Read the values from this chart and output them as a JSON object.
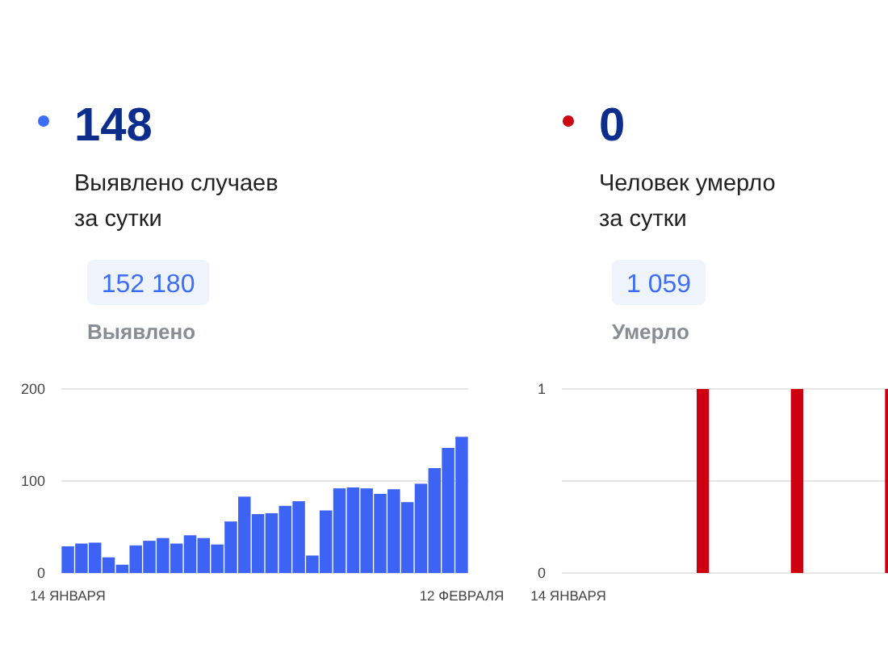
{
  "chart_data": [
    {
      "type": "other",
      "title": "148",
      "subtitle": "Выявлено случаев\nза сутки",
      "annotations": [
        "152 180",
        "Выявлено"
      ],
      "color": "#3d6ef5"
    },
    {
      "type": "bar",
      "categories": [
        "14 ЯНВАРЯ",
        null,
        null,
        null,
        null,
        null,
        null,
        null,
        null,
        null,
        null,
        null,
        null,
        null,
        null,
        null,
        null,
        null,
        null,
        null,
        null,
        null,
        null,
        null,
        null,
        null,
        null,
        null,
        null,
        "12 ФЕВРАЛЯ"
      ],
      "values": [
        29,
        32,
        33,
        17,
        9,
        30,
        35,
        38,
        32,
        41,
        38,
        31,
        56,
        83,
        64,
        65,
        73,
        78,
        19,
        68,
        92,
        93,
        92,
        86,
        91,
        77,
        97,
        114,
        136,
        148
      ],
      "color": "#3d63f5",
      "ylim": [
        0,
        200
      ],
      "yticks": [
        0,
        100,
        200
      ],
      "grid": "y"
    },
    {
      "type": "other",
      "title": "0",
      "subtitle": "Человек умерло\nза сутки",
      "annotations": [
        "1 059",
        "Умерло"
      ],
      "color": "#cc0011"
    },
    {
      "type": "bar",
      "categories": [
        "14 ЯНВАРЯ",
        null,
        null,
        null,
        null,
        null,
        null,
        null,
        null,
        null,
        null,
        null,
        null,
        null,
        null,
        null,
        null,
        null,
        null,
        null,
        null,
        null,
        null,
        null,
        null
      ],
      "values": [
        0,
        0,
        0,
        0,
        0,
        0,
        0,
        0,
        0,
        0,
        1,
        0,
        0,
        0,
        0,
        0,
        0,
        1,
        0,
        0,
        0,
        0,
        0,
        0,
        1
      ],
      "color": "#cc0011",
      "ylim": [
        0,
        1
      ],
      "yticks": [
        0,
        {
          "value": 0.5,
          "label": null
        },
        1
      ],
      "grid": "y"
    }
  ]
}
